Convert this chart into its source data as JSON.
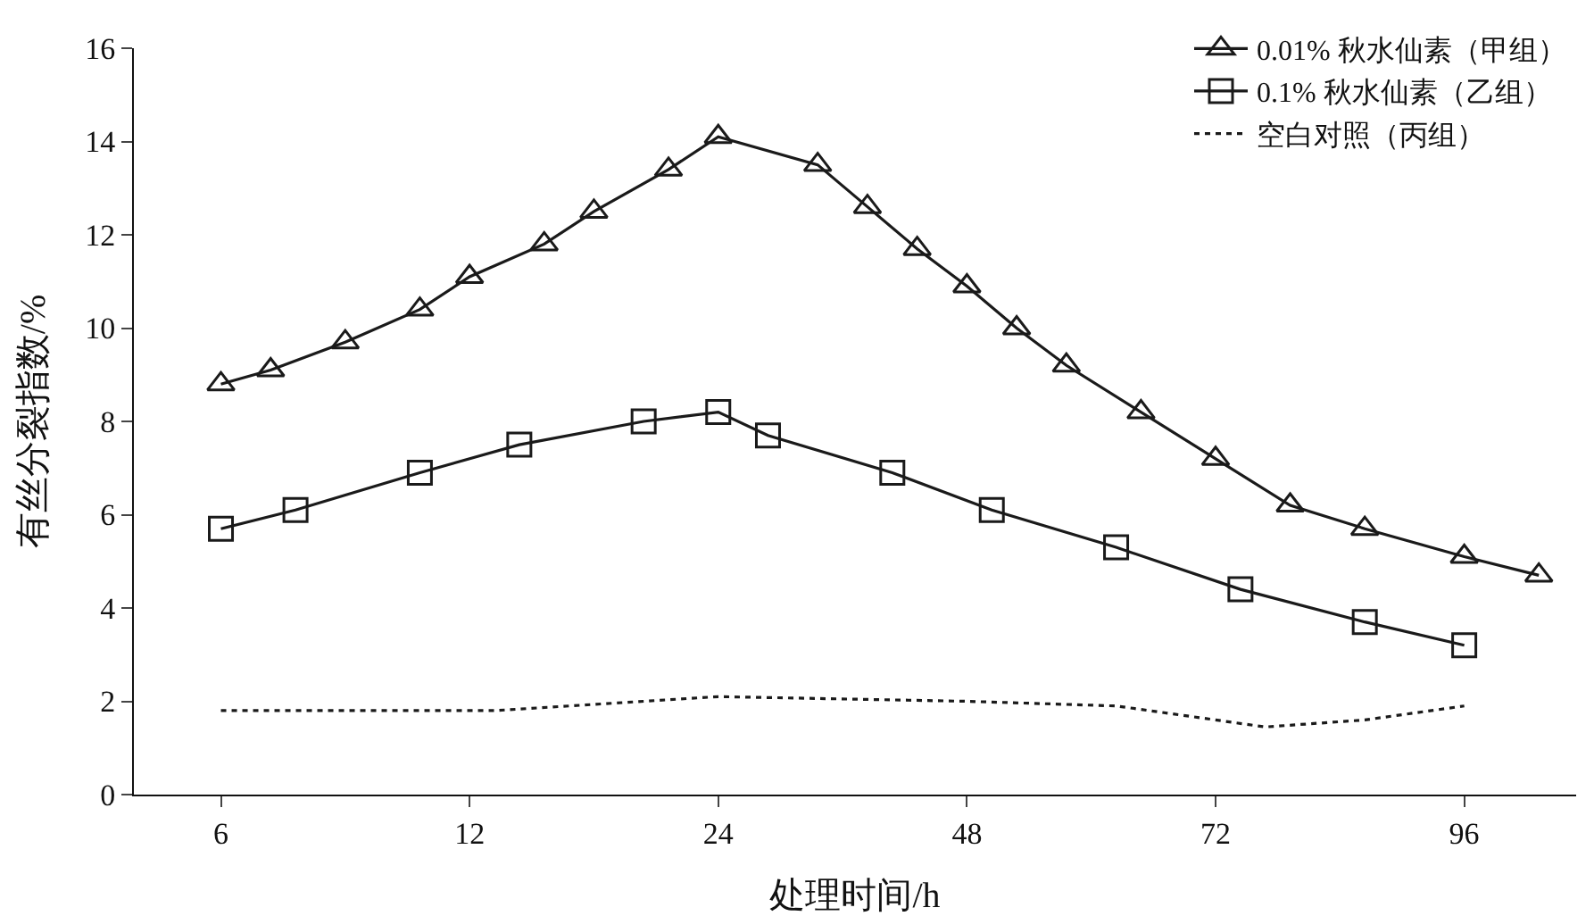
{
  "chart_data": {
    "type": "line",
    "xlabel": "处理时间/h",
    "ylabel": "有丝分裂指数/%",
    "categories": [
      null,
      null,
      null,
      "6",
      null,
      null,
      null,
      null,
      null,
      null,
      null,
      null,
      null,
      "12",
      null,
      null,
      null,
      null,
      null,
      null,
      null,
      null,
      null,
      "24",
      null,
      null,
      null,
      null,
      null,
      null,
      null,
      null,
      null,
      "48",
      null,
      null,
      null,
      null,
      null,
      null,
      null,
      null,
      null,
      "72",
      null,
      null,
      null,
      null,
      null,
      null,
      null,
      null,
      null,
      "96",
      null,
      null,
      null,
      null
    ],
    "ylim": [
      0,
      16
    ],
    "yticks": [
      0,
      2,
      4,
      6,
      8,
      10,
      12,
      14,
      16
    ],
    "grid": false,
    "legend": "top right",
    "series": [
      {
        "name": "0.01% 秋水仙素（甲组）",
        "color": "#1a1a1a",
        "marker": "triangle",
        "line_style": "solid",
        "values": [
          null,
          null,
          null,
          8.8,
          null,
          9.1,
          null,
          null,
          9.7,
          null,
          null,
          10.4,
          null,
          11.1,
          null,
          null,
          11.8,
          null,
          12.5,
          null,
          null,
          13.4,
          null,
          14.1,
          null,
          null,
          null,
          13.5,
          null,
          12.6,
          null,
          11.7,
          null,
          10.9,
          null,
          10.0,
          null,
          9.2,
          null,
          null,
          8.2,
          null,
          null,
          7.2,
          null,
          null,
          6.2,
          null,
          null,
          5.7,
          null,
          null,
          null,
          5.1,
          null,
          null,
          4.7,
          null
        ]
      },
      {
        "name": "0.1% 秋水仙素（乙组）",
        "color": "#1a1a1a",
        "marker": "square",
        "line_style": "solid",
        "values": [
          null,
          null,
          null,
          5.7,
          null,
          null,
          6.1,
          null,
          null,
          null,
          null,
          6.9,
          null,
          null,
          null,
          7.5,
          null,
          null,
          null,
          null,
          8.0,
          null,
          null,
          8.2,
          null,
          7.7,
          null,
          null,
          null,
          null,
          6.9,
          null,
          null,
          null,
          6.1,
          null,
          null,
          null,
          null,
          5.3,
          null,
          null,
          null,
          null,
          4.4,
          null,
          null,
          null,
          null,
          3.7,
          null,
          null,
          null,
          3.2,
          null,
          null,
          null,
          null
        ]
      },
      {
        "name": "空白对照（丙组）",
        "color": "#1a1a1a",
        "marker": "none",
        "line_style": "dotted",
        "values": [
          null,
          null,
          null,
          1.8,
          null,
          null,
          null,
          null,
          null,
          null,
          null,
          null,
          null,
          null,
          1.8,
          null,
          null,
          null,
          null,
          null,
          null,
          null,
          null,
          2.1,
          null,
          null,
          null,
          null,
          null,
          null,
          null,
          null,
          null,
          2.0,
          null,
          null,
          null,
          null,
          null,
          1.9,
          null,
          null,
          null,
          null,
          null,
          1.45,
          null,
          null,
          null,
          1.6,
          null,
          null,
          null,
          1.9,
          null,
          null,
          null,
          null
        ]
      }
    ]
  }
}
